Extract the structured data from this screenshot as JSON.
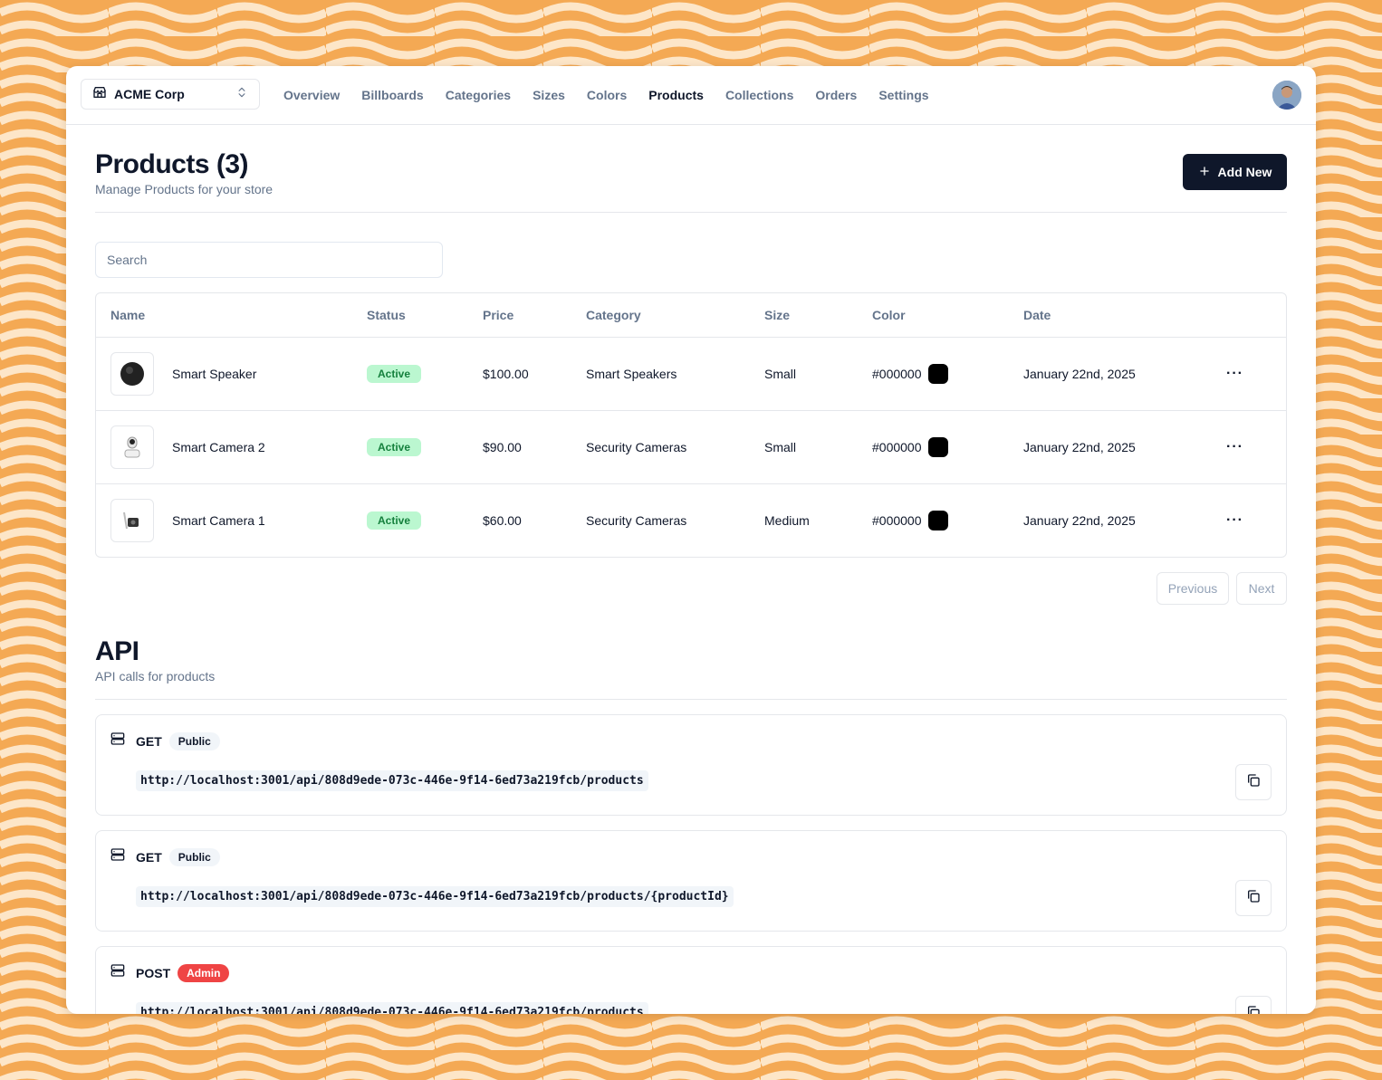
{
  "store": {
    "name": "ACME Corp"
  },
  "nav": {
    "items": [
      {
        "label": "Overview",
        "active": false
      },
      {
        "label": "Billboards",
        "active": false
      },
      {
        "label": "Categories",
        "active": false
      },
      {
        "label": "Sizes",
        "active": false
      },
      {
        "label": "Colors",
        "active": false
      },
      {
        "label": "Products",
        "active": true
      },
      {
        "label": "Collections",
        "active": false
      },
      {
        "label": "Orders",
        "active": false
      },
      {
        "label": "Settings",
        "active": false
      }
    ]
  },
  "header": {
    "title": "Products (3)",
    "subtitle": "Manage Products for your store",
    "add_label": "Add New"
  },
  "search": {
    "placeholder": "Search",
    "value": ""
  },
  "table": {
    "columns": [
      "Name",
      "Status",
      "Price",
      "Category",
      "Size",
      "Color",
      "Date"
    ],
    "rows": [
      {
        "name": "Smart Speaker",
        "status": "Active",
        "price": "$100.00",
        "category": "Smart Speakers",
        "size": "Small",
        "color": "#000000",
        "date": "January 22nd, 2025",
        "thumb": "speaker-image"
      },
      {
        "name": "Smart Camera 2",
        "status": "Active",
        "price": "$90.00",
        "category": "Security Cameras",
        "size": "Small",
        "color": "#000000",
        "date": "January 22nd, 2025",
        "thumb": "camera-image"
      },
      {
        "name": "Smart Camera 1",
        "status": "Active",
        "price": "$60.00",
        "category": "Security Cameras",
        "size": "Medium",
        "color": "#000000",
        "date": "January 22nd, 2025",
        "thumb": "camera-image"
      }
    ]
  },
  "pagination": {
    "previous": "Previous",
    "next": "Next"
  },
  "api": {
    "title": "API",
    "subtitle": "API calls for products",
    "calls": [
      {
        "method": "GET",
        "access": "Public",
        "url": "http://localhost:3001/api/808d9ede-073c-446e-9f14-6ed73a219fcb/products"
      },
      {
        "method": "GET",
        "access": "Public",
        "url": "http://localhost:3001/api/808d9ede-073c-446e-9f14-6ed73a219fcb/products/{productId}"
      },
      {
        "method": "POST",
        "access": "Admin",
        "url": "http://localhost:3001/api/808d9ede-073c-446e-9f14-6ed73a219fcb/products"
      }
    ]
  },
  "colors": {
    "background": "#f4a954",
    "wave": "#fde6c8",
    "primary": "#0f172a",
    "active_badge_bg": "#bbf7d0",
    "active_badge_text": "#15803d",
    "admin_badge": "#ef4444",
    "muted_text": "#64748b"
  }
}
